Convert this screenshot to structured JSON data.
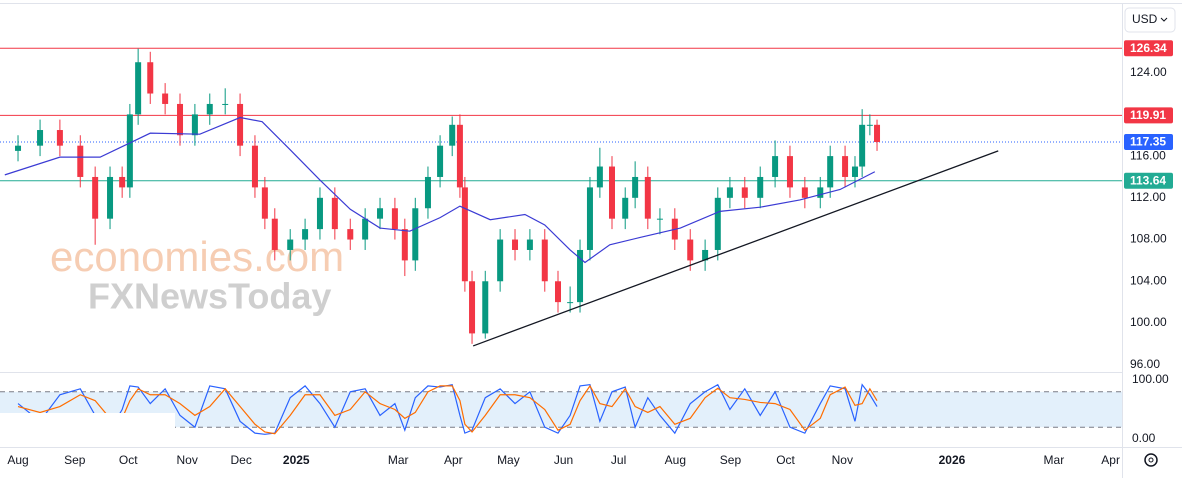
{
  "currency": "USD",
  "watermark": [
    "economies.com",
    "FXNewsToday"
  ],
  "chart_data": [
    {
      "type": "candlestick",
      "up_color": "#089981",
      "down_color": "#f23645",
      "xlim": [
        -0.327,
        20.036
      ],
      "xticks": [
        {
          "value": 0,
          "label": "Aug"
        },
        {
          "value": 1.03,
          "label": "Sep"
        },
        {
          "value": 2.0,
          "label": "Oct"
        },
        {
          "value": 3.07,
          "label": "Nov"
        },
        {
          "value": 4.05,
          "label": "Dec"
        },
        {
          "value": 5.05,
          "label": "2025"
        },
        {
          "value": 6.9,
          "label": "Mar"
        },
        {
          "value": 7.9,
          "label": "Apr"
        },
        {
          "value": 8.9,
          "label": "May"
        },
        {
          "value": 9.9,
          "label": "Jun"
        },
        {
          "value": 10.9,
          "label": "Jul"
        },
        {
          "value": 11.93,
          "label": "Aug"
        },
        {
          "value": 12.93,
          "label": "Sep"
        },
        {
          "value": 13.93,
          "label": "Oct"
        },
        {
          "value": 14.96,
          "label": "Nov"
        },
        {
          "value": 16.95,
          "label": "2026"
        },
        {
          "value": 18.8,
          "label": "Mar"
        },
        {
          "value": 19.83,
          "label": "Apr"
        }
      ],
      "ylim": [
        95.3,
        130.2
      ],
      "yticks": [
        {
          "value": 124,
          "label": "124.00"
        },
        {
          "value": 116,
          "label": "116.00"
        },
        {
          "value": 112,
          "label": "112.00"
        },
        {
          "value": 108,
          "label": "108.00"
        },
        {
          "value": 104,
          "label": "104.00"
        },
        {
          "value": 100,
          "label": "100.00"
        },
        {
          "value": 96,
          "label": "96.00"
        }
      ],
      "x": [
        0,
        0.4,
        0.76,
        1.13,
        1.4,
        1.67,
        1.89,
        2.03,
        2.18,
        2.4,
        2.67,
        2.94,
        3.21,
        3.48,
        3.76,
        4.03,
        4.3,
        4.48,
        4.66,
        4.94,
        5.21,
        5.48,
        5.75,
        6.03,
        6.3,
        6.57,
        6.84,
        7.02,
        7.21,
        7.44,
        7.66,
        7.88,
        8.02,
        8.11,
        8.24,
        8.48,
        8.75,
        9.02,
        9.29,
        9.56,
        9.8,
        10.02,
        10.2,
        10.38,
        10.56,
        10.78,
        11.02,
        11.2,
        11.43,
        11.65,
        11.92,
        12.2,
        12.47,
        12.7,
        12.92,
        13.19,
        13.47,
        13.74,
        14.01,
        14.28,
        14.56,
        14.74,
        15.01,
        15.19,
        15.32,
        15.46,
        15.59
      ],
      "open": [
        116.5,
        117,
        118.5,
        117,
        114,
        110,
        114,
        113,
        120,
        125,
        122,
        121,
        118,
        120,
        121,
        121,
        117,
        113,
        110,
        107,
        108,
        109,
        112,
        109,
        108,
        110,
        111,
        109,
        106,
        111,
        114,
        117,
        119,
        113,
        104,
        99,
        104,
        108,
        107,
        108,
        104,
        102,
        102,
        107,
        113,
        115,
        110,
        112,
        114,
        110,
        110,
        108,
        106,
        107,
        112,
        113,
        112,
        114,
        116,
        113,
        112,
        113,
        116,
        114,
        115,
        119,
        119
      ],
      "high": [
        118,
        119.5,
        119.5,
        118,
        115,
        115,
        115,
        121,
        126.3,
        126,
        123,
        122,
        121,
        122,
        122.5,
        122,
        118,
        114,
        111,
        109,
        110,
        113,
        113,
        110,
        111,
        112,
        112,
        110,
        112,
        115,
        118,
        119.8,
        120,
        114,
        105,
        105,
        109,
        109,
        109,
        109,
        105,
        103.5,
        108,
        114,
        116.8,
        116,
        113,
        115.5,
        115,
        111,
        111,
        109,
        108,
        113,
        114,
        114,
        115,
        117.5,
        117,
        114,
        114,
        117,
        117,
        116,
        120.5,
        120,
        119.5
      ],
      "low": [
        115.5,
        116,
        116,
        113,
        107.5,
        109,
        112,
        112,
        119,
        121,
        120,
        117,
        117,
        119,
        120,
        116,
        112,
        109,
        106,
        106,
        107,
        108,
        108,
        107,
        107,
        109,
        108,
        104.5,
        105,
        110,
        113,
        116,
        112,
        103,
        98,
        98.5,
        103,
        106,
        106,
        103,
        101,
        101,
        101,
        106,
        112,
        109,
        109,
        111,
        109,
        108.5,
        107,
        105,
        105,
        106,
        111,
        111,
        111,
        113,
        112,
        111,
        111,
        112,
        113,
        113,
        114,
        118,
        116.5
      ],
      "close": [
        117,
        118.5,
        117,
        114,
        110,
        114,
        113,
        120,
        125,
        122,
        121,
        118,
        120,
        121,
        121,
        117,
        113,
        110,
        107,
        108,
        109,
        112,
        109,
        108,
        110,
        111,
        109,
        106,
        111,
        114,
        117,
        119,
        113,
        104,
        99,
        104,
        108,
        107,
        108,
        104,
        102,
        102,
        107,
        113,
        115,
        110,
        112,
        114,
        110,
        110,
        108,
        106,
        107,
        112,
        113,
        112,
        114,
        116,
        113,
        112,
        113,
        116,
        114,
        115,
        119,
        119,
        117.35
      ],
      "moving_average": {
        "color": "#3b3bd4",
        "x": [
          -0.24,
          0.76,
          1.49,
          2.4,
          3.3,
          4.03,
          4.43,
          4.94,
          5.48,
          6.03,
          6.57,
          7.11,
          7.66,
          8.02,
          8.57,
          9.2,
          9.56,
          10.02,
          10.29,
          10.74,
          11.29,
          12.02,
          12.74,
          13.47,
          14.19,
          14.92,
          15.55
        ],
        "values": [
          114.2,
          115.9,
          115.9,
          118.2,
          118.1,
          119.7,
          119.3,
          116.6,
          113.7,
          110.9,
          109.1,
          108.8,
          110.1,
          111.2,
          109.9,
          110.4,
          109.4,
          107,
          105.8,
          107.5,
          108.2,
          109.1,
          110.7,
          111.1,
          111.8,
          112.8,
          114.5
        ]
      },
      "trendline": {
        "color": "#131722",
        "x": [
          8.26,
          17.79
        ],
        "values": [
          97.8,
          116.5
        ]
      },
      "levels": [
        {
          "value": 126.34,
          "color": "#f23645",
          "style": "solid"
        },
        {
          "value": 119.91,
          "color": "#f23645",
          "style": "solid"
        },
        {
          "value": 117.35,
          "color": "#2962ff",
          "style": "dotted"
        },
        {
          "value": 113.64,
          "color": "#22ab94",
          "style": "solid"
        }
      ]
    },
    {
      "type": "line",
      "ylim": [
        -13.5,
        113.5
      ],
      "yticks": [
        {
          "value": 100,
          "label": "100.00"
        },
        {
          "value": 0,
          "label": "0.00"
        }
      ],
      "band": [
        20,
        80
      ],
      "band_color": "#e3f0fb",
      "series": [
        {
          "color": "#2962ff",
          "values": [
            60,
            30,
            75,
            85,
            40,
            15,
            50,
            90,
            88,
            60,
            85,
            40,
            20,
            90,
            85,
            30,
            10,
            8,
            10,
            70,
            90,
            60,
            20,
            80,
            85,
            40,
            60,
            15,
            70,
            90,
            88,
            92,
            40,
            10,
            15,
            70,
            85,
            60,
            80,
            20,
            10,
            40,
            90,
            92,
            30,
            80,
            88,
            20,
            70,
            40,
            10,
            60,
            80,
            92,
            50,
            85,
            40,
            80,
            20,
            10,
            60,
            90,
            85,
            30,
            92,
            75,
            55
          ]
        },
        {
          "color": "#ff6d00",
          "values": [
            55,
            45,
            55,
            75,
            65,
            35,
            35,
            65,
            85,
            75,
            75,
            60,
            40,
            55,
            85,
            55,
            25,
            12,
            9,
            40,
            75,
            75,
            40,
            50,
            80,
            60,
            50,
            35,
            45,
            80,
            90,
            90,
            65,
            25,
            12,
            40,
            75,
            75,
            70,
            50,
            15,
            25,
            65,
            90,
            60,
            55,
            85,
            55,
            45,
            55,
            25,
            35,
            70,
            86,
            70,
            67,
            62,
            60,
            50,
            15,
            35,
            75,
            88,
            57,
            60,
            85,
            65
          ]
        }
      ]
    }
  ]
}
